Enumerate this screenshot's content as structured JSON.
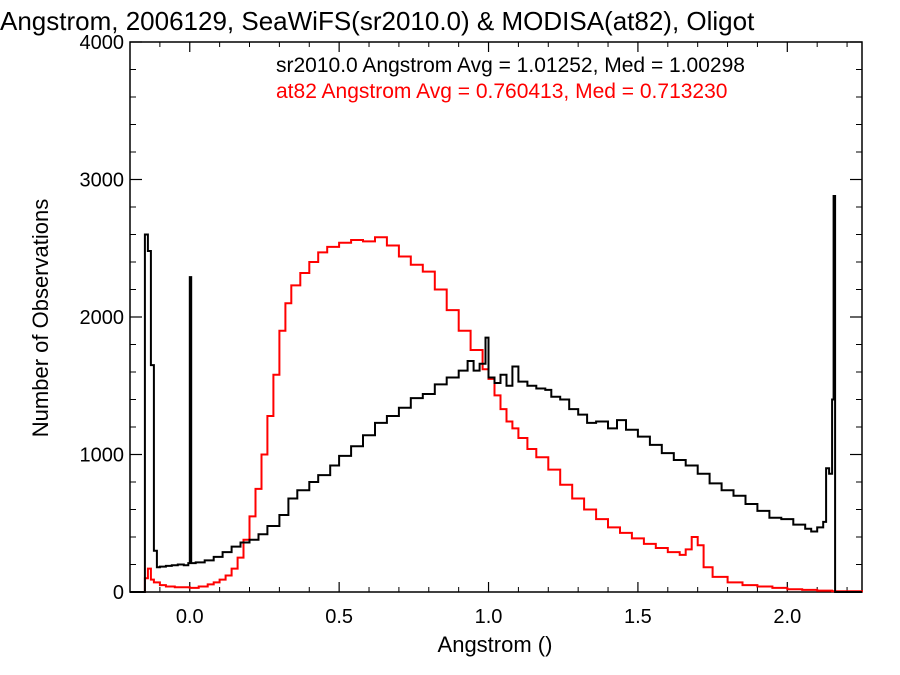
{
  "chart_data": {
    "type": "line",
    "title": "Angstrom, 2006129, SeaWiFS(sr2010.0) & MODISA(at82), Oligot",
    "xlabel": "Angstrom ()",
    "ylabel": "Number of Observations",
    "xlim": [
      -0.2,
      2.25
    ],
    "ylim": [
      0,
      4000
    ],
    "x_ticks": [
      {
        "value": 0.0,
        "label": "0.0"
      },
      {
        "value": 0.5,
        "label": "0.5"
      },
      {
        "value": 1.0,
        "label": "1.0"
      },
      {
        "value": 1.5,
        "label": "1.5"
      },
      {
        "value": 2.0,
        "label": "2.0"
      }
    ],
    "y_ticks": [
      {
        "value": 0,
        "label": "0"
      },
      {
        "value": 1000,
        "label": "1000"
      },
      {
        "value": 2000,
        "label": "2000"
      },
      {
        "value": 3000,
        "label": "3000"
      },
      {
        "value": 4000,
        "label": "4000"
      }
    ],
    "grid": false,
    "legend_placement": "top-right",
    "annotations": [
      {
        "text": "sr2010.0 Angstrom Avg = 1.01252, Med = 1.00298",
        "color": "#000000"
      },
      {
        "text": "at82 Angstrom Avg = 0.760413, Med = 0.713230",
        "color": "#ff0000"
      }
    ],
    "series": [
      {
        "color": "#000000",
        "style": "histogram-step",
        "points": [
          [
            -0.2,
            0
          ],
          [
            -0.16,
            0
          ],
          [
            -0.15,
            2600
          ],
          [
            -0.14,
            2480
          ],
          [
            -0.13,
            1650
          ],
          [
            -0.12,
            300
          ],
          [
            -0.11,
            180
          ],
          [
            -0.1,
            185
          ],
          [
            -0.08,
            190
          ],
          [
            -0.06,
            195
          ],
          [
            -0.04,
            200
          ],
          [
            -0.02,
            195
          ],
          [
            -0.005,
            210
          ],
          [
            0.0,
            2290
          ],
          [
            0.005,
            210
          ],
          [
            0.02,
            215
          ],
          [
            0.05,
            230
          ],
          [
            0.08,
            255
          ],
          [
            0.11,
            290
          ],
          [
            0.14,
            330
          ],
          [
            0.17,
            360
          ],
          [
            0.2,
            380
          ],
          [
            0.23,
            420
          ],
          [
            0.26,
            480
          ],
          [
            0.3,
            560
          ],
          [
            0.33,
            680
          ],
          [
            0.36,
            740
          ],
          [
            0.4,
            800
          ],
          [
            0.43,
            850
          ],
          [
            0.47,
            920
          ],
          [
            0.5,
            990
          ],
          [
            0.54,
            1060
          ],
          [
            0.58,
            1140
          ],
          [
            0.62,
            1230
          ],
          [
            0.66,
            1280
          ],
          [
            0.7,
            1340
          ],
          [
            0.74,
            1410
          ],
          [
            0.78,
            1440
          ],
          [
            0.82,
            1510
          ],
          [
            0.86,
            1560
          ],
          [
            0.9,
            1610
          ],
          [
            0.93,
            1680
          ],
          [
            0.95,
            1610
          ],
          [
            0.97,
            1660
          ],
          [
            0.99,
            1850
          ],
          [
            1.0,
            1560
          ],
          [
            1.02,
            1520
          ],
          [
            1.04,
            1580
          ],
          [
            1.06,
            1500
          ],
          [
            1.08,
            1640
          ],
          [
            1.1,
            1530
          ],
          [
            1.13,
            1500
          ],
          [
            1.16,
            1480
          ],
          [
            1.19,
            1470
          ],
          [
            1.21,
            1420
          ],
          [
            1.24,
            1400
          ],
          [
            1.27,
            1330
          ],
          [
            1.3,
            1290
          ],
          [
            1.33,
            1230
          ],
          [
            1.36,
            1240
          ],
          [
            1.4,
            1190
          ],
          [
            1.43,
            1250
          ],
          [
            1.46,
            1180
          ],
          [
            1.5,
            1130
          ],
          [
            1.54,
            1070
          ],
          [
            1.58,
            1010
          ],
          [
            1.62,
            960
          ],
          [
            1.66,
            920
          ],
          [
            1.7,
            860
          ],
          [
            1.74,
            790
          ],
          [
            1.78,
            740
          ],
          [
            1.82,
            700
          ],
          [
            1.86,
            640
          ],
          [
            1.9,
            590
          ],
          [
            1.94,
            540
          ],
          [
            1.98,
            530
          ],
          [
            2.02,
            490
          ],
          [
            2.06,
            460
          ],
          [
            2.08,
            440
          ],
          [
            2.1,
            470
          ],
          [
            2.12,
            510
          ],
          [
            2.13,
            900
          ],
          [
            2.14,
            860
          ],
          [
            2.15,
            1400
          ],
          [
            2.155,
            2880
          ],
          [
            2.16,
            0
          ],
          [
            2.25,
            0
          ]
        ]
      },
      {
        "color": "#ff0000",
        "style": "histogram-step",
        "points": [
          [
            -0.2,
            0
          ],
          [
            -0.16,
            0
          ],
          [
            -0.15,
            100
          ],
          [
            -0.14,
            170
          ],
          [
            -0.13,
            90
          ],
          [
            -0.12,
            70
          ],
          [
            -0.1,
            50
          ],
          [
            -0.08,
            40
          ],
          [
            -0.05,
            35
          ],
          [
            -0.02,
            35
          ],
          [
            0.0,
            30
          ],
          [
            0.03,
            40
          ],
          [
            0.06,
            55
          ],
          [
            0.08,
            70
          ],
          [
            0.1,
            90
          ],
          [
            0.12,
            120
          ],
          [
            0.14,
            170
          ],
          [
            0.16,
            250
          ],
          [
            0.18,
            380
          ],
          [
            0.2,
            550
          ],
          [
            0.22,
            750
          ],
          [
            0.24,
            1000
          ],
          [
            0.26,
            1280
          ],
          [
            0.28,
            1580
          ],
          [
            0.3,
            1900
          ],
          [
            0.32,
            2100
          ],
          [
            0.34,
            2230
          ],
          [
            0.37,
            2320
          ],
          [
            0.4,
            2400
          ],
          [
            0.43,
            2470
          ],
          [
            0.46,
            2510
          ],
          [
            0.5,
            2540
          ],
          [
            0.54,
            2560
          ],
          [
            0.58,
            2550
          ],
          [
            0.62,
            2580
          ],
          [
            0.66,
            2520
          ],
          [
            0.7,
            2440
          ],
          [
            0.74,
            2380
          ],
          [
            0.78,
            2330
          ],
          [
            0.82,
            2200
          ],
          [
            0.86,
            2050
          ],
          [
            0.9,
            1900
          ],
          [
            0.94,
            1760
          ],
          [
            0.98,
            1620
          ],
          [
            1.0,
            1550
          ],
          [
            1.02,
            1430
          ],
          [
            1.04,
            1330
          ],
          [
            1.06,
            1240
          ],
          [
            1.08,
            1190
          ],
          [
            1.1,
            1120
          ],
          [
            1.13,
            1040
          ],
          [
            1.16,
            980
          ],
          [
            1.2,
            890
          ],
          [
            1.24,
            780
          ],
          [
            1.28,
            680
          ],
          [
            1.32,
            600
          ],
          [
            1.36,
            530
          ],
          [
            1.4,
            470
          ],
          [
            1.44,
            430
          ],
          [
            1.48,
            390
          ],
          [
            1.52,
            350
          ],
          [
            1.56,
            320
          ],
          [
            1.6,
            290
          ],
          [
            1.64,
            270
          ],
          [
            1.66,
            310
          ],
          [
            1.68,
            400
          ],
          [
            1.7,
            340
          ],
          [
            1.72,
            180
          ],
          [
            1.75,
            110
          ],
          [
            1.8,
            70
          ],
          [
            1.85,
            50
          ],
          [
            1.9,
            40
          ],
          [
            1.95,
            30
          ],
          [
            2.0,
            20
          ],
          [
            2.05,
            15
          ],
          [
            2.1,
            10
          ],
          [
            2.15,
            5
          ],
          [
            2.25,
            0
          ]
        ]
      }
    ]
  }
}
